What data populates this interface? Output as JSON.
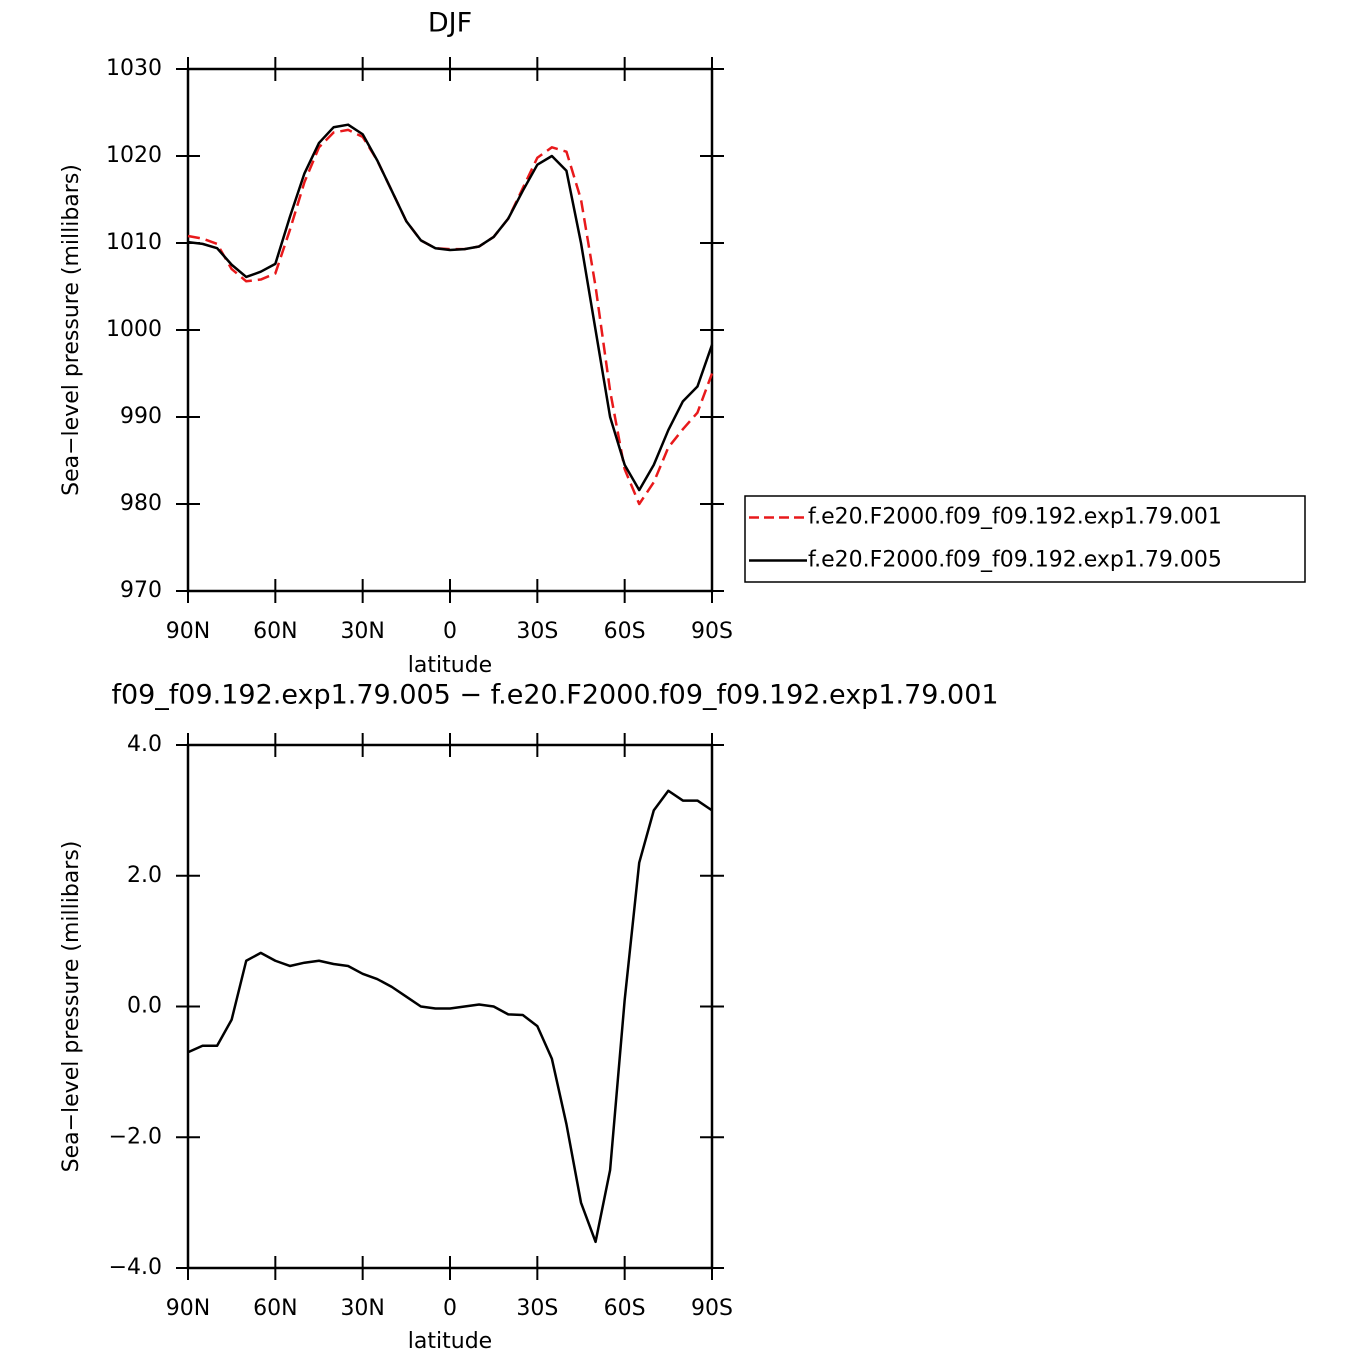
{
  "chart_data": [
    {
      "type": "line",
      "title": "DJF",
      "x_label": "latitude",
      "y_label": "Sea−level pressure (millibars)",
      "x": [
        90,
        85,
        80,
        75,
        70,
        65,
        60,
        55,
        50,
        45,
        40,
        35,
        30,
        25,
        20,
        15,
        10,
        5,
        0,
        -5,
        -10,
        -15,
        -20,
        -25,
        -30,
        -35,
        -40,
        -45,
        -50,
        -55,
        -60,
        -65,
        -70,
        -75,
        -80,
        -85,
        -90
      ],
      "series": [
        {
          "name": "f.e20.F2000.f09_f09.192.exp1.79.001",
          "color": "#e8191b",
          "style": "dashed",
          "values": [
            1010.8,
            1010.5,
            1009.9,
            1007,
            1005.6,
            1005.8,
            1006.5,
            1011.5,
            1017,
            1021,
            1022.7,
            1023,
            1022.2,
            1019.5,
            1016,
            1012.5,
            1010.3,
            1009.4,
            1009.3,
            1009.3,
            1009.6,
            1010.7,
            1012.8,
            1016.3,
            1019.8,
            1021,
            1020.5,
            1015,
            1005,
            993,
            984,
            980,
            982.5,
            986.5,
            988.6,
            990.5,
            995
          ]
        },
        {
          "name": "f.e20.F2000.f09_f09.192.exp1.79.005",
          "color": "#000000",
          "style": "solid",
          "values": [
            1010.1,
            1009.9,
            1009.4,
            1007.5,
            1006.1,
            1006.7,
            1007.6,
            1013,
            1018,
            1021.5,
            1023.3,
            1023.6,
            1022.5,
            1019.5,
            1016,
            1012.5,
            1010.3,
            1009.4,
            1009.2,
            1009.3,
            1009.6,
            1010.7,
            1012.8,
            1016,
            1019,
            1020,
            1018.3,
            1010,
            1000,
            990,
            984.5,
            981.6,
            984.5,
            988.5,
            991.8,
            993.5,
            998.3
          ]
        }
      ],
      "xlim": [
        90,
        -90
      ],
      "xticks": [
        {
          "value": 90,
          "label": "90N"
        },
        {
          "value": 60,
          "label": "60N"
        },
        {
          "value": 30,
          "label": "30N"
        },
        0,
        {
          "value": -30,
          "label": "30S"
        },
        {
          "value": -60,
          "label": "60S"
        },
        {
          "value": -90,
          "label": "90S"
        }
      ],
      "ylim": [
        970,
        1030
      ],
      "yticks": [
        970,
        980,
        990,
        1000,
        1010,
        1020,
        1030
      ],
      "legend": "right",
      "grid": false
    },
    {
      "type": "line",
      "title": "f09_f09.192.exp1.79.005 − f.e20.F2000.f09_f09.192.exp1.79.001",
      "x_label": "latitude",
      "y_label": "Sea−level pressure (millibars)",
      "x": [
        90,
        85,
        80,
        75,
        70,
        65,
        60,
        55,
        50,
        45,
        40,
        35,
        30,
        25,
        20,
        15,
        10,
        5,
        0,
        -5,
        -10,
        -15,
        -20,
        -25,
        -30,
        -35,
        -40,
        -45,
        -50,
        -55,
        -60,
        -65,
        -70,
        -75,
        -80,
        -85,
        -90
      ],
      "values": [
        -0.7,
        -0.6,
        -0.6,
        -0.2,
        0.7,
        0.82,
        0.7,
        0.62,
        0.67,
        0.7,
        0.65,
        0.62,
        0.5,
        0.42,
        0.3,
        0.15,
        0.0,
        -0.03,
        -0.03,
        0.0,
        0.03,
        0.0,
        -0.12,
        -0.13,
        -0.3,
        -0.8,
        -1.8,
        -3.0,
        -3.6,
        -2.5,
        0.1,
        2.2,
        3.0,
        3.3,
        3.15,
        3.15,
        3.0
      ],
      "color": "#000000",
      "xlim": [
        90,
        -90
      ],
      "xticks": [
        {
          "value": 90,
          "label": "90N"
        },
        {
          "value": 60,
          "label": "60N"
        },
        {
          "value": 30,
          "label": "30N"
        },
        0,
        {
          "value": -30,
          "label": "30S"
        },
        {
          "value": -60,
          "label": "60S"
        },
        {
          "value": -90,
          "label": "90S"
        }
      ],
      "ylim": [
        -4,
        4
      ],
      "yticks": [
        {
          "value": -4,
          "label": "−4.0"
        },
        {
          "value": -2,
          "label": "−2.0"
        },
        {
          "value": 0,
          "label": "0.0"
        },
        {
          "value": 2,
          "label": "2.0"
        },
        {
          "value": 4,
          "label": "4.0"
        }
      ],
      "grid": false
    }
  ]
}
